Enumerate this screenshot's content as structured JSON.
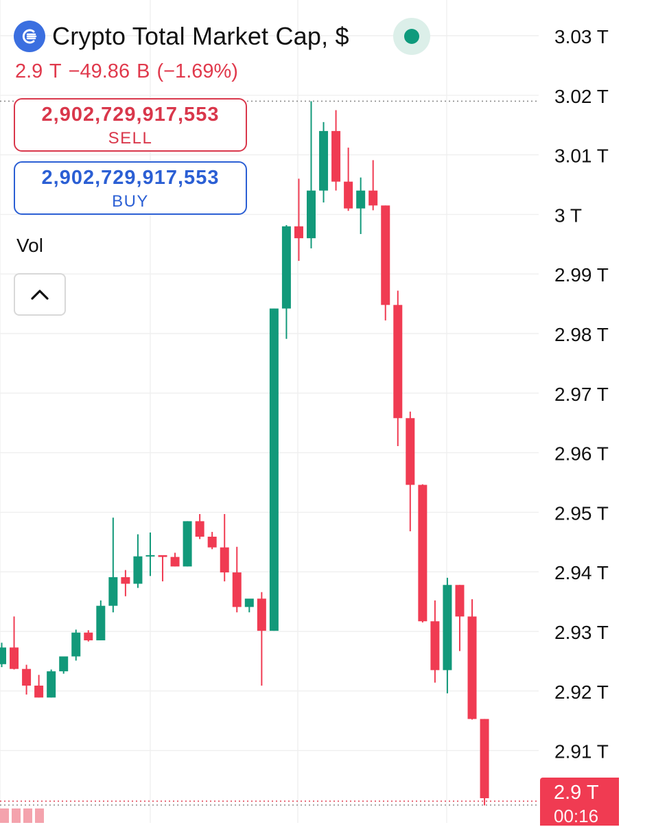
{
  "header": {
    "title": "Crypto Total Market Cap, $",
    "logo_icon": "crypto-cap-logo-icon",
    "status_color": "#0e9a7c"
  },
  "quote": {
    "last": "2.9 T",
    "change": "−49.86 B",
    "change_pct": "(−1.69%)",
    "color": "#e0394c"
  },
  "trade": {
    "sell_price": "2,902,729,917,553",
    "sell_label": "SELL",
    "buy_price": "2,902,729,917,553",
    "buy_label": "BUY"
  },
  "indicators": {
    "vol_label": "Vol",
    "collapse_icon": "chevron-up-icon"
  },
  "last_price_tag": {
    "value": "2.9 T",
    "countdown": "00:16",
    "color": "#f03b52"
  },
  "chart_data": {
    "type": "candlestick",
    "title": "Crypto Total Market Cap, $",
    "y_unit": "T",
    "y_range": [
      2.9,
      3.03
    ],
    "y_ticks": [
      "3.03 T",
      "3.02 T",
      "3.01 T",
      "3 T",
      "2.99 T",
      "2.98 T",
      "2.97 T",
      "2.96 T",
      "2.95 T",
      "2.94 T",
      "2.93 T",
      "2.92 T",
      "2.91 T"
    ],
    "y_tick_values": [
      3.03,
      3.02,
      3.01,
      3.0,
      2.99,
      2.98,
      2.97,
      2.96,
      2.95,
      2.94,
      2.93,
      2.92,
      2.91
    ],
    "grid": true,
    "up_color": "#12997a",
    "down_color": "#f03b52",
    "reference_lines": [
      3.019,
      2.9015
    ],
    "candles": [
      {
        "o": 2.9245,
        "h": 2.9281,
        "l": 2.924,
        "c": 2.9273
      },
      {
        "o": 2.9273,
        "h": 2.9325,
        "l": 2.9236,
        "c": 2.9237
      },
      {
        "o": 2.9237,
        "h": 2.9244,
        "l": 2.9194,
        "c": 2.9209
      },
      {
        "o": 2.9209,
        "h": 2.9227,
        "l": 2.9189,
        "c": 2.9189
      },
      {
        "o": 2.9189,
        "h": 2.9236,
        "l": 2.9189,
        "c": 2.9233
      },
      {
        "o": 2.9233,
        "h": 2.9253,
        "l": 2.9229,
        "c": 2.9258
      },
      {
        "o": 2.9258,
        "h": 2.9303,
        "l": 2.9251,
        "c": 2.9298
      },
      {
        "o": 2.9298,
        "h": 2.9302,
        "l": 2.9283,
        "c": 2.9285
      },
      {
        "o": 2.9285,
        "h": 2.9352,
        "l": 2.9285,
        "c": 2.9343
      },
      {
        "o": 2.9343,
        "h": 2.9491,
        "l": 2.9332,
        "c": 2.9391
      },
      {
        "o": 2.9391,
        "h": 2.9403,
        "l": 2.9359,
        "c": 2.938
      },
      {
        "o": 2.938,
        "h": 2.9463,
        "l": 2.9373,
        "c": 2.9426
      },
      {
        "o": 2.9426,
        "h": 2.9466,
        "l": 2.9393,
        "c": 2.9428
      },
      {
        "o": 2.9428,
        "h": 2.9427,
        "l": 2.9384,
        "c": 2.9425
      },
      {
        "o": 2.9425,
        "h": 2.9432,
        "l": 2.9409,
        "c": 2.9409
      },
      {
        "o": 2.9409,
        "h": 2.9485,
        "l": 2.9409,
        "c": 2.9485
      },
      {
        "o": 2.9485,
        "h": 2.9497,
        "l": 2.9455,
        "c": 2.9459
      },
      {
        "o": 2.9459,
        "h": 2.9467,
        "l": 2.9438,
        "c": 2.9441
      },
      {
        "o": 2.9441,
        "h": 2.9497,
        "l": 2.9384,
        "c": 2.9399
      },
      {
        "o": 2.9399,
        "h": 2.9442,
        "l": 2.9332,
        "c": 2.9341
      },
      {
        "o": 2.9341,
        "h": 2.935,
        "l": 2.9332,
        "c": 2.9355
      },
      {
        "o": 2.9355,
        "h": 2.9366,
        "l": 2.9209,
        "c": 2.9301
      },
      {
        "o": 2.9301,
        "h": 2.9842,
        "l": 2.9301,
        "c": 2.9842
      },
      {
        "o": 2.9842,
        "h": 2.9982,
        "l": 2.9791,
        "c": 2.998
      },
      {
        "o": 2.998,
        "h": 3.006,
        "l": 2.9922,
        "c": 2.996
      },
      {
        "o": 2.996,
        "h": 3.019,
        "l": 2.9943,
        "c": 3.004
      },
      {
        "o": 3.004,
        "h": 3.0155,
        "l": 3.002,
        "c": 3.014
      },
      {
        "o": 3.014,
        "h": 3.0175,
        "l": 3.004,
        "c": 3.0055
      },
      {
        "o": 3.0055,
        "h": 3.0112,
        "l": 3.0006,
        "c": 3.001
      },
      {
        "o": 3.001,
        "h": 3.0062,
        "l": 2.9967,
        "c": 3.004
      },
      {
        "o": 3.004,
        "h": 3.0091,
        "l": 3.0007,
        "c": 3.0015
      },
      {
        "o": 3.0015,
        "h": 3.0015,
        "l": 2.9822,
        "c": 2.9848
      },
      {
        "o": 2.9848,
        "h": 2.9872,
        "l": 2.9611,
        "c": 2.9658
      },
      {
        "o": 2.9658,
        "h": 2.9669,
        "l": 2.9468,
        "c": 2.9546
      },
      {
        "o": 2.9546,
        "h": 2.9547,
        "l": 2.9315,
        "c": 2.9317
      },
      {
        "o": 2.9317,
        "h": 2.9352,
        "l": 2.9214,
        "c": 2.9235
      },
      {
        "o": 2.9235,
        "h": 2.939,
        "l": 2.9196,
        "c": 2.9378
      },
      {
        "o": 2.9378,
        "h": 2.9378,
        "l": 2.9267,
        "c": 2.9325
      },
      {
        "o": 2.9325,
        "h": 2.9354,
        "l": 2.9152,
        "c": 2.9153
      },
      {
        "o": 2.9153,
        "h": 2.9153,
        "l": 2.9008,
        "c": 2.902
      }
    ]
  }
}
